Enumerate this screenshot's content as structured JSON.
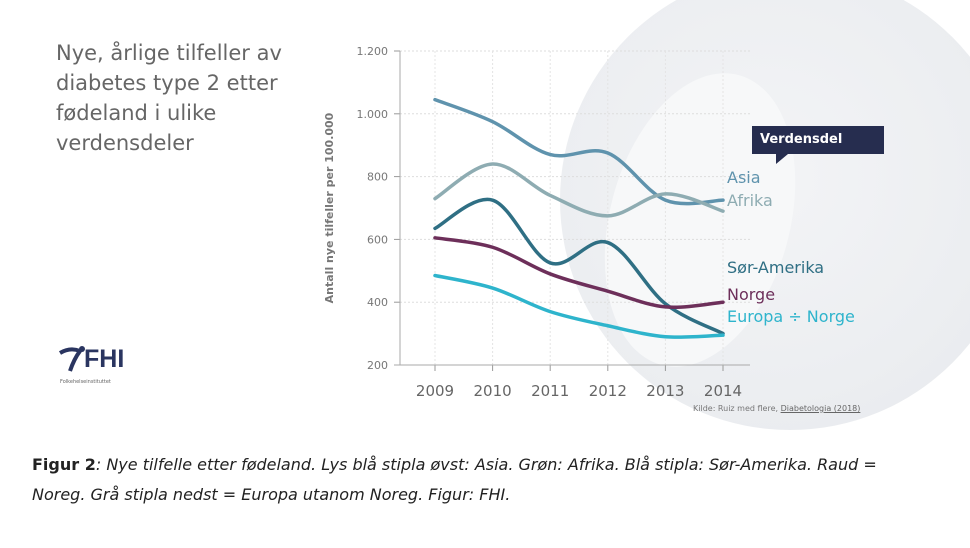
{
  "title": "Nye, årlige tilfeller av diabetes type 2 etter fødeland i ulike verdensdeler",
  "logo": {
    "text": "FHI",
    "subtitle": "Folkehelseinstituttet"
  },
  "source": {
    "prefix": "Kilde: Ruiz med flere, ",
    "link": "Diabetologia (2018)"
  },
  "legend_title": "Verdensdel",
  "caption": {
    "label": "Figur 2",
    "text": ": Nye tilfelle etter fødeland. Lys blå stipla øvst: Asia. Grøn: Afrika. Blå stipla: Sør-Amerika. Raud = Noreg. Grå stipla nedst = Europa utanom Noreg. Figur: FHI."
  },
  "chart_data": {
    "type": "line",
    "title": "",
    "xlabel": "",
    "ylabel": "Antall nye tilfeller per 100.000",
    "x": [
      2009,
      2010,
      2011,
      2012,
      2013,
      2014
    ],
    "ylim": [
      200,
      1200
    ],
    "yticks": [
      200,
      400,
      600,
      800,
      1000,
      1200
    ],
    "ytick_labels": [
      "200",
      "400",
      "600",
      "800",
      "1.000",
      "1.200"
    ],
    "grid": true,
    "series": [
      {
        "name": "Asia",
        "color": "#5f93ad",
        "values": [
          1045,
          975,
          870,
          875,
          725,
          725
        ]
      },
      {
        "name": "Afrika",
        "color": "#8eacb2",
        "values": [
          730,
          840,
          740,
          675,
          745,
          690
        ]
      },
      {
        "name": "Sør-Amerika",
        "color": "#2f6f84",
        "values": [
          635,
          725,
          525,
          590,
          395,
          300
        ]
      },
      {
        "name": "Norge",
        "color": "#6d2f5a",
        "values": [
          605,
          575,
          490,
          435,
          385,
          400
        ]
      },
      {
        "name": "Europa ÷ Norge",
        "color": "#2eb4cc",
        "values": [
          485,
          445,
          370,
          325,
          290,
          295
        ]
      }
    ]
  }
}
